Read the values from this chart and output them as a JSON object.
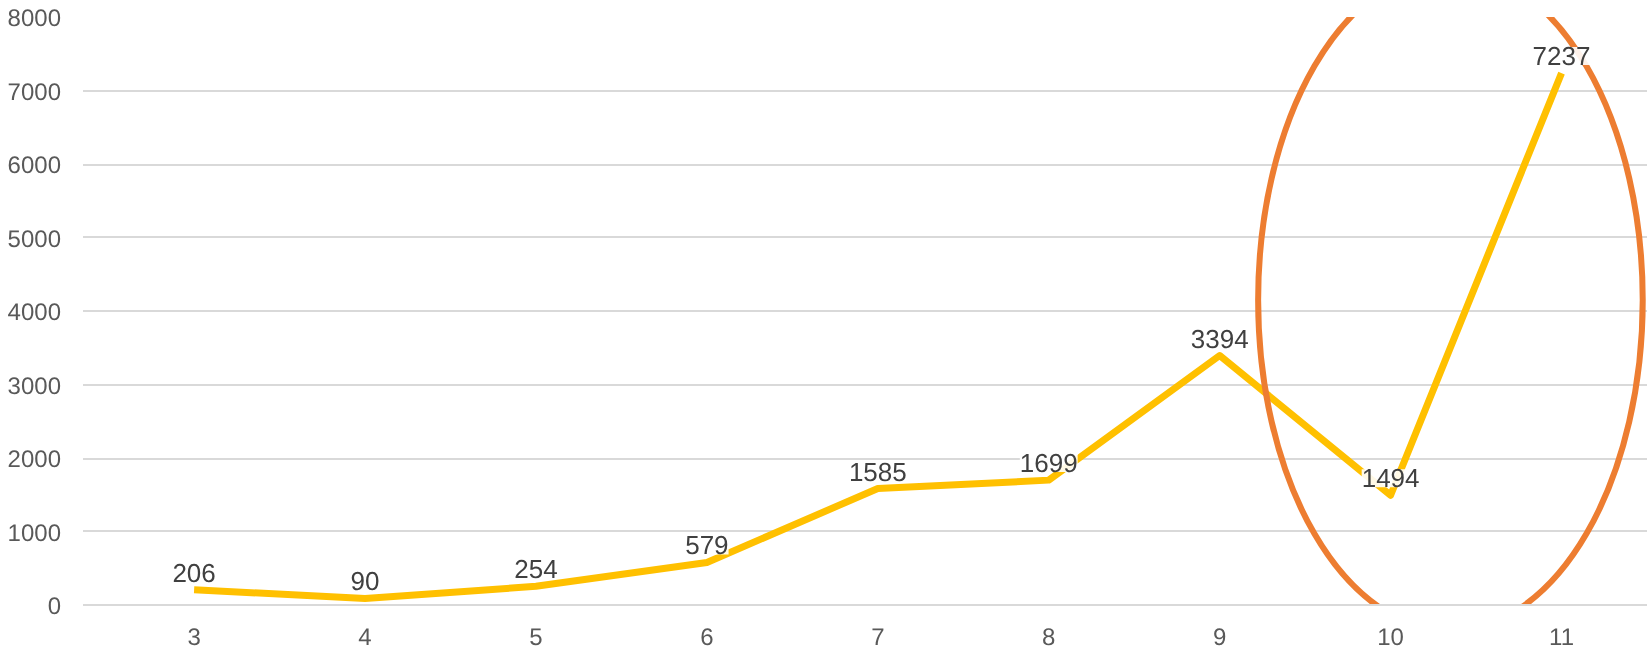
{
  "chart_data": {
    "type": "line",
    "categories": [
      "3",
      "4",
      "5",
      "6",
      "7",
      "8",
      "9",
      "10",
      "11"
    ],
    "series": [
      {
        "color": "#ffc000",
        "values": [
          206,
          90,
          254,
          579,
          1585,
          1699,
          3394,
          1494,
          7237
        ]
      }
    ],
    "ylim": [
      0,
      8000
    ],
    "yticks": [
      0,
      1000,
      2000,
      3000,
      4000,
      5000,
      6000,
      7000,
      8000
    ],
    "grid": "y",
    "data_labels": true,
    "marker": "none",
    "line_style": "solid"
  }
}
